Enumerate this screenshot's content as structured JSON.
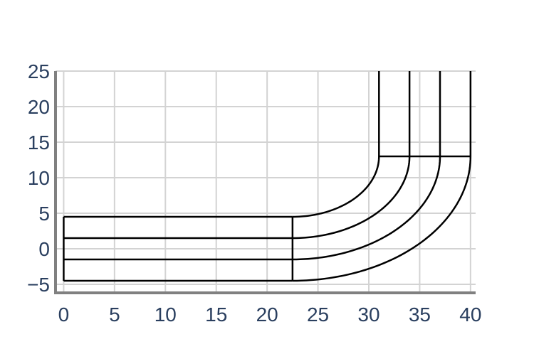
{
  "chart_data": {
    "type": "line",
    "title": "",
    "xlabel": "",
    "ylabel": "",
    "xlim": [
      -0.8,
      40.5
    ],
    "ylim": [
      -6.2,
      25
    ],
    "grid": true,
    "legend": "none",
    "x_ticks": [
      0,
      5,
      10,
      15,
      20,
      25,
      30,
      35,
      40
    ],
    "y_ticks": [
      25,
      20,
      15,
      10,
      5,
      0,
      -5
    ],
    "x_tick_labels": [
      "0",
      "5",
      "10",
      "15",
      "20",
      "25",
      "30",
      "35",
      "40"
    ],
    "y_tick_labels": [
      "25",
      "20",
      "15",
      "10",
      "5",
      "0",
      "−5"
    ],
    "bend": {
      "center": [
        22.5,
        13
      ],
      "radii": [
        8.5,
        11.5,
        14.5,
        17.5
      ]
    },
    "series": [
      {
        "x": [
          0,
          22.5
        ],
        "y": [
          -4.5,
          -4.5
        ]
      },
      {
        "x": [
          0,
          22.5
        ],
        "y": [
          -1.5,
          -1.5
        ]
      },
      {
        "x": [
          0,
          22.5
        ],
        "y": [
          1.5,
          1.5
        ]
      },
      {
        "x": [
          0,
          22.5
        ],
        "y": [
          4.5,
          4.5
        ]
      },
      {
        "x": [
          0,
          0
        ],
        "y": [
          -4.5,
          4.5
        ]
      },
      {
        "x": [
          22.5,
          22.5
        ],
        "y": [
          -4.5,
          4.5
        ]
      },
      {
        "x": [
          31,
          40
        ],
        "y": [
          13,
          13
        ]
      },
      {
        "x": [
          31,
          31
        ],
        "y": [
          13,
          25
        ]
      },
      {
        "x": [
          34,
          34
        ],
        "y": [
          13,
          25
        ]
      },
      {
        "x": [
          37,
          37
        ],
        "y": [
          13,
          25
        ]
      },
      {
        "x": [
          40,
          40
        ],
        "y": [
          13,
          25
        ]
      }
    ],
    "colors": {
      "line": "#000000",
      "grid": "#d3d3d3",
      "axis": "#808080",
      "tick_text": "#2a3f5f"
    }
  }
}
